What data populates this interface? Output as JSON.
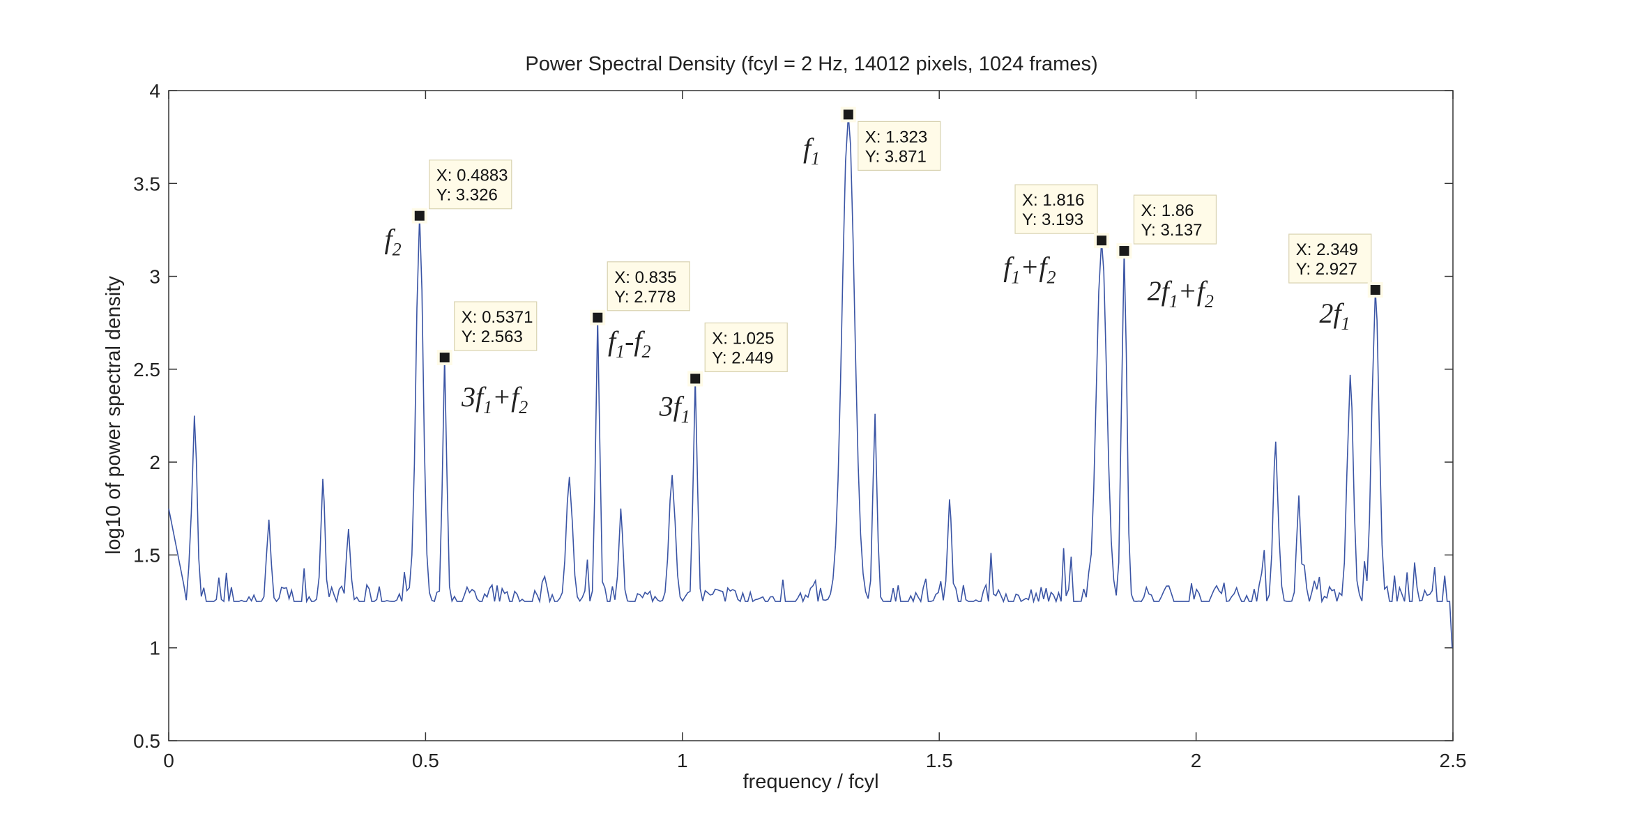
{
  "chart_data": {
    "type": "line",
    "title": "Power Spectral Density (fcyl = 2 Hz, 14012 pixels, 1024 frames)",
    "xlabel": "frequency / fcyl",
    "ylabel": "log10 of power spectral density",
    "xlim": [
      0,
      2.5
    ],
    "ylim": [
      0.5,
      4
    ],
    "xticks": [
      0,
      0.5,
      1,
      1.5,
      2,
      2.5
    ],
    "yticks": [
      0.5,
      1,
      1.5,
      2,
      2.5,
      3,
      3.5,
      4
    ],
    "xtick_labels": [
      "0",
      "0.5",
      "1",
      "1.5",
      "2",
      "2.5"
    ],
    "ytick_labels": [
      "0.5",
      "1",
      "1.5",
      "2",
      "2.5",
      "3",
      "3.5",
      "4"
    ],
    "grid": false,
    "line_color": "#3b55a5",
    "x_step": 0.00488,
    "baseline": 1.25,
    "spectrum_peaks": [
      {
        "x": 0.05,
        "y": 2.25,
        "w": 0.005
      },
      {
        "x": 0.195,
        "y": 1.69,
        "w": 0.004
      },
      {
        "x": 0.3,
        "y": 1.91,
        "w": 0.004
      },
      {
        "x": 0.35,
        "y": 1.64,
        "w": 0.004
      },
      {
        "x": 0.4883,
        "y": 3.326,
        "w": 0.007
      },
      {
        "x": 0.5371,
        "y": 2.563,
        "w": 0.004
      },
      {
        "x": 0.78,
        "y": 1.92,
        "w": 0.006
      },
      {
        "x": 0.835,
        "y": 2.778,
        "w": 0.004
      },
      {
        "x": 0.88,
        "y": 1.75,
        "w": 0.004
      },
      {
        "x": 0.98,
        "y": 1.93,
        "w": 0.006
      },
      {
        "x": 1.025,
        "y": 2.449,
        "w": 0.004
      },
      {
        "x": 1.323,
        "y": 3.871,
        "w": 0.012
      },
      {
        "x": 1.375,
        "y": 2.26,
        "w": 0.004
      },
      {
        "x": 1.52,
        "y": 1.8,
        "w": 0.004
      },
      {
        "x": 1.816,
        "y": 3.193,
        "w": 0.01
      },
      {
        "x": 1.86,
        "y": 3.137,
        "w": 0.005
      },
      {
        "x": 2.155,
        "y": 2.11,
        "w": 0.005
      },
      {
        "x": 2.2,
        "y": 1.82,
        "w": 0.004
      },
      {
        "x": 2.3,
        "y": 2.47,
        "w": 0.006
      },
      {
        "x": 2.349,
        "y": 2.927,
        "w": 0.007
      }
    ],
    "datatips": [
      {
        "x": 0.4883,
        "y": 3.326,
        "x_text": "X: 0.4883",
        "y_text": "Y: 3.326",
        "box_side": "right-above"
      },
      {
        "x": 0.5371,
        "y": 2.563,
        "x_text": "X: 0.5371",
        "y_text": "Y: 2.563",
        "box_side": "right-above"
      },
      {
        "x": 0.835,
        "y": 2.778,
        "x_text": "X: 0.835",
        "y_text": "Y: 2.778",
        "box_side": "right-above"
      },
      {
        "x": 1.025,
        "y": 2.449,
        "x_text": "X: 1.025",
        "y_text": "Y: 2.449",
        "box_side": "right-above"
      },
      {
        "x": 1.323,
        "y": 3.871,
        "x_text": "X: 1.323",
        "y_text": "Y: 3.871",
        "box_side": "right-below"
      },
      {
        "x": 1.816,
        "y": 3.193,
        "x_text": "X: 1.816",
        "y_text": "Y: 3.193",
        "box_side": "left-above"
      },
      {
        "x": 1.86,
        "y": 3.137,
        "x_text": "X: 1.86",
        "y_text": "Y: 3.137",
        "box_side": "right-above"
      },
      {
        "x": 2.349,
        "y": 2.927,
        "x_text": "X: 2.349",
        "y_text": "Y: 2.927",
        "box_side": "left-above"
      }
    ],
    "annotations": [
      {
        "base": "f",
        "sub": "2",
        "x": 0.42,
        "y": 3.15
      },
      {
        "base": "3f",
        "sub": "1",
        "base2": "+f",
        "sub2": "2",
        "x": 0.57,
        "y": 2.3
      },
      {
        "base": "f",
        "sub": "1",
        "base2": "-f",
        "sub2": "2",
        "x": 0.855,
        "y": 2.6
      },
      {
        "base": "3f",
        "sub": "1",
        "x": 0.955,
        "y": 2.25
      },
      {
        "base": "f",
        "sub": "1",
        "x": 1.235,
        "y": 3.64
      },
      {
        "base": "f",
        "sub": "1",
        "base2": "+f",
        "sub2": "2",
        "x": 1.625,
        "y": 3.0
      },
      {
        "base": "2f",
        "sub": "1",
        "base2": "+f",
        "sub2": "2",
        "x": 1.905,
        "y": 2.87
      },
      {
        "base": "2f",
        "sub": "1",
        "x": 2.24,
        "y": 2.75
      }
    ]
  }
}
